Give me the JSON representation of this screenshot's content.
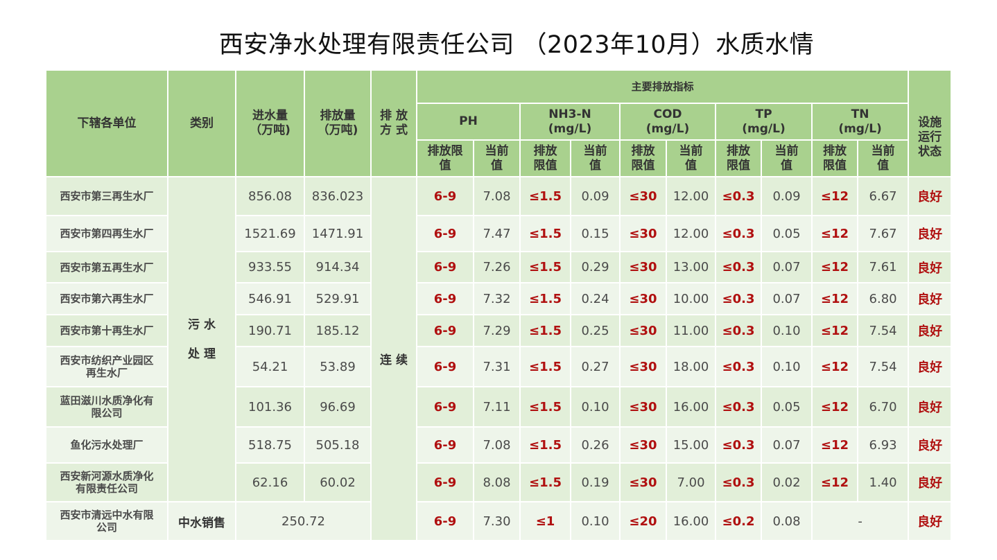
{
  "title": "西安净水处理有限责任公司 （2023年10月）水质水情",
  "header": {
    "unit": "下辖各单位",
    "category": "类别",
    "inflow": "进水量\n（万吨)",
    "discharge": "排放量\n（万吨)",
    "method": "排 放\n方 式",
    "main_indicators": "主要排放指标",
    "ph": "PH",
    "nh3n": "NH3-N\n(mg/L)",
    "cod": "COD\n(mg/L)",
    "tp": "TP\n(mg/L)",
    "tn": "TN\n(mg/L)",
    "limit": "排放限\n值",
    "limit2": "排放\n限值",
    "current": "当前\n值",
    "status": "设施\n运行\n状态"
  },
  "category_sewage": "污 水\n处 理",
  "category_reclaimed": "中水销售",
  "method_value": "连 续",
  "rows": [
    {
      "unit": "西安市第三再生水厂",
      "inflow": "856.08",
      "discharge": "836.023",
      "ph_lim": "6-9",
      "ph": "7.08",
      "nh3_lim": "≤1.5",
      "nh3": "0.09",
      "cod_lim": "≤30",
      "cod": "12.00",
      "tp_lim": "≤0.3",
      "tp": "0.09",
      "tn_lim": "≤12",
      "tn": "6.67",
      "status": "良好"
    },
    {
      "unit": "西安市第四再生水厂",
      "inflow": "1521.69",
      "discharge": "1471.91",
      "ph_lim": "6-9",
      "ph": "7.47",
      "nh3_lim": "≤1.5",
      "nh3": "0.15",
      "cod_lim": "≤30",
      "cod": "12.00",
      "tp_lim": "≤0.3",
      "tp": "0.05",
      "tn_lim": "≤12",
      "tn": "7.67",
      "status": "良好"
    },
    {
      "unit": "西安市第五再生水厂",
      "inflow": "933.55",
      "discharge": "914.34",
      "ph_lim": "6-9",
      "ph": "7.26",
      "nh3_lim": "≤1.5",
      "nh3": "0.29",
      "cod_lim": "≤30",
      "cod": "13.00",
      "tp_lim": "≤0.3",
      "tp": "0.07",
      "tn_lim": "≤12",
      "tn": "7.61",
      "status": "良好"
    },
    {
      "unit": "西安市第六再生水厂",
      "inflow": "546.91",
      "discharge": "529.91",
      "ph_lim": "6-9",
      "ph": "7.32",
      "nh3_lim": "≤1.5",
      "nh3": "0.24",
      "cod_lim": "≤30",
      "cod": "10.00",
      "tp_lim": "≤0.3",
      "tp": "0.07",
      "tn_lim": "≤12",
      "tn": "6.80",
      "status": "良好"
    },
    {
      "unit": "西安市第十再生水厂",
      "inflow": "190.71",
      "discharge": "185.12",
      "ph_lim": "6-9",
      "ph": "7.29",
      "nh3_lim": "≤1.5",
      "nh3": "0.25",
      "cod_lim": "≤30",
      "cod": "11.00",
      "tp_lim": "≤0.3",
      "tp": "0.10",
      "tn_lim": "≤12",
      "tn": "7.54",
      "status": "良好"
    },
    {
      "unit": "西安市纺织产业园区\n再生水厂",
      "inflow": "54.21",
      "discharge": "53.89",
      "ph_lim": "6-9",
      "ph": "7.31",
      "nh3_lim": "≤1.5",
      "nh3": "0.27",
      "cod_lim": "≤30",
      "cod": "18.00",
      "tp_lim": "≤0.3",
      "tp": "0.10",
      "tn_lim": "≤12",
      "tn": "7.54",
      "status": "良好"
    },
    {
      "unit": "蓝田滋川水质净化有\n限公司",
      "inflow": "101.36",
      "discharge": "96.69",
      "ph_lim": "6-9",
      "ph": "7.11",
      "nh3_lim": "≤1.5",
      "nh3": "0.10",
      "cod_lim": "≤30",
      "cod": "16.00",
      "tp_lim": "≤0.3",
      "tp": "0.05",
      "tn_lim": "≤12",
      "tn": "6.70",
      "status": "良好"
    },
    {
      "unit": "鱼化污水处理厂",
      "inflow": "518.75",
      "discharge": "505.18",
      "ph_lim": "6-9",
      "ph": "7.08",
      "nh3_lim": "≤1.5",
      "nh3": "0.26",
      "cod_lim": "≤30",
      "cod": "15.00",
      "tp_lim": "≤0.3",
      "tp": "0.07",
      "tn_lim": "≤12",
      "tn": "6.93",
      "status": "良好"
    },
    {
      "unit": "西安新河源水质净化\n有限责任公司",
      "inflow": "62.16",
      "discharge": "60.02",
      "ph_lim": "6-9",
      "ph": "8.08",
      "nh3_lim": "≤1.5",
      "nh3": "0.19",
      "cod_lim": "≤30",
      "cod": "7.00",
      "tp_lim": "≤0.3",
      "tp": "0.02",
      "tn_lim": "≤12",
      "tn": "1.40",
      "status": "良好"
    }
  ],
  "last_row": {
    "unit": "西安市清远中水有限\n公司",
    "volume": "250.72",
    "ph_lim": "6-9",
    "ph": "7.30",
    "nh3_lim": "≤1",
    "nh3": "0.10",
    "cod_lim": "≤20",
    "cod": "16.00",
    "tp_lim": "≤0.2",
    "tp": "0.08",
    "tn": "-",
    "status": "良好"
  }
}
